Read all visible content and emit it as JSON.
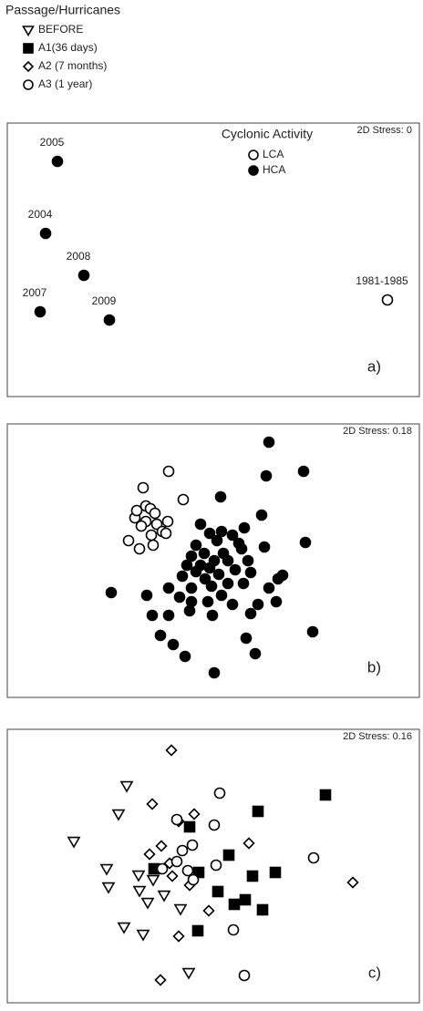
{
  "chart_data": [
    {
      "type": "scatter",
      "panel_label": "a)",
      "annotation": "2D Stress: 0",
      "legend_title": "Cyclonic Activity",
      "legend": "upper-right",
      "xlim": [
        0,
        452
      ],
      "ylim": [
        0,
        300
      ],
      "series": [
        {
          "name": "LCA",
          "marker": "circle",
          "filled": false,
          "color": "#000000",
          "x": [
            417
          ],
          "y": [
            106
          ],
          "labels": [
            "1981-1985"
          ]
        },
        {
          "name": "HCA",
          "marker": "circle",
          "filled": true,
          "color": "#000000",
          "x": [
            55,
            42,
            84,
            36,
            112
          ],
          "y": [
            258,
            179,
            133,
            93,
            84
          ],
          "labels": [
            "2005",
            "2004",
            "2008",
            "2007",
            "2009"
          ]
        }
      ]
    },
    {
      "type": "scatter",
      "panel_label": "b)",
      "annotation": "2D Stress: 0.18",
      "xlim": [
        0,
        452
      ],
      "ylim": [
        0,
        300
      ],
      "series": [
        {
          "marker": "circle",
          "filled": false,
          "color": "#000000",
          "x": [
            177,
            149,
            152,
            157,
            162,
            140,
            152,
            176,
            164,
            147,
            170,
            158,
            133,
            174,
            160,
            145,
            193,
            142
          ],
          "y": [
            248,
            230,
            210,
            207,
            202,
            197,
            193,
            193,
            190,
            188,
            182,
            178,
            172,
            180,
            167,
            163,
            217,
            205
          ]
        },
        {
          "marker": "circle",
          "filled": true,
          "color": "#000000",
          "x": [
            287,
            284,
            325,
            234,
            279,
            260,
            212,
            222,
            235,
            247,
            207,
            254,
            230,
            202,
            216,
            237,
            227,
            242,
            257,
            212,
            197,
            282,
            327,
            264,
            250,
            232,
            217,
            207,
            222,
            267,
            242,
            202,
            224,
            235,
            297,
            302,
            259,
            287,
            189,
            177,
            220,
            247,
            275,
            114,
            153,
            202,
            177,
            200,
            225,
            295,
            267,
            159,
            168,
            335,
            182,
            262,
            195,
            272,
            227,
            192
          ],
          "y": [
            280,
            243,
            248,
            220,
            200,
            186,
            190,
            180,
            182,
            178,
            167,
            169,
            172,
            155,
            158,
            158,
            150,
            150,
            163,
            145,
            145,
            165,
            170,
            150,
            140,
            135,
            130,
            138,
            142,
            137,
            125,
            120,
            122,
            112,
            130,
            134,
            125,
            120,
            110,
            120,
            105,
            102,
            102,
            115,
            112,
            105,
            90,
            95,
            90,
            105,
            92,
            90,
            68,
            72,
            58,
            65,
            45,
            48,
            27,
            133
          ]
        }
      ]
    },
    {
      "type": "scatter",
      "panel_label": "c)",
      "annotation": "2D Stress: 0.16",
      "legend_title": "Passage/Hurricanes",
      "legend": "above",
      "xlim": [
        0,
        452
      ],
      "ylim": [
        0,
        300
      ],
      "series": [
        {
          "name": "BEFORE",
          "marker": "triangle-down",
          "filled": false,
          "color": "#000000",
          "x": [
            131,
            122,
            73,
            109,
            144,
            111,
            160,
            145,
            172,
            154,
            190,
            128,
            149,
            199
          ],
          "y": [
            238,
            207,
            177,
            147,
            140,
            127,
            135,
            123,
            118,
            110,
            103,
            83,
            75,
            33
          ]
        },
        {
          "name": "A1(36 days)",
          "marker": "square",
          "filled": true,
          "color": "#000000",
          "x": [
            349,
            275,
            200,
            243,
            161,
            210,
            294,
            269,
            231,
            261,
            249,
            280,
            209
          ],
          "y": [
            228,
            210,
            193,
            162,
            147,
            143,
            143,
            139,
            122,
            113,
            108,
            102,
            79
          ]
        },
        {
          "name": "A2 (7 months)",
          "marker": "diamond",
          "filled": false,
          "color": "#000000",
          "x": [
            180,
            159,
            205,
            188,
            169,
            156,
            265,
            178,
            181,
            379,
            200,
            221,
            188,
            168
          ],
          "y": [
            277,
            218,
            207,
            199,
            172,
            163,
            175,
            153,
            139,
            132,
            129,
            101,
            73,
            25
          ]
        },
        {
          "name": "A3 (1 year)",
          "marker": "circle",
          "filled": false,
          "color": "#000000",
          "x": [
            233,
            186,
            227,
            203,
            192,
            229,
            186,
            170,
            198,
            204,
            336,
            248,
            260
          ],
          "y": [
            230,
            201,
            195,
            173,
            167,
            151,
            155,
            147,
            145,
            135,
            159,
            80,
            30
          ]
        }
      ]
    }
  ]
}
